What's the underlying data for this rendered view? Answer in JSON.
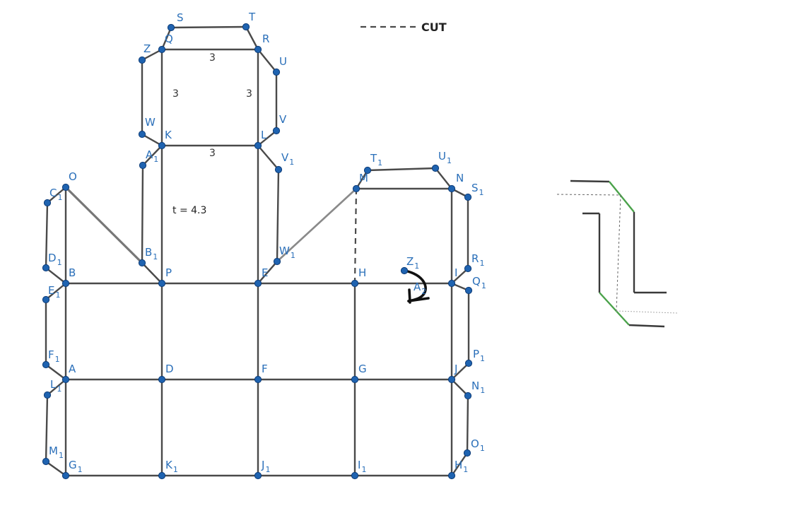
{
  "legend": {
    "cut_label": "CUT"
  },
  "parameter": {
    "text": "t = 4.3"
  },
  "dimensions": [
    {
      "key": "qr",
      "text": "3"
    },
    {
      "key": "qk",
      "text": "3"
    },
    {
      "key": "rl",
      "text": "3"
    },
    {
      "key": "kl",
      "text": "3"
    }
  ],
  "points": [
    {
      "key": "S",
      "base": "S",
      "sub": ""
    },
    {
      "key": "T",
      "base": "T",
      "sub": ""
    },
    {
      "key": "Q",
      "base": "Q",
      "sub": ""
    },
    {
      "key": "R",
      "base": "R",
      "sub": ""
    },
    {
      "key": "Z",
      "base": "Z",
      "sub": ""
    },
    {
      "key": "U",
      "base": "U",
      "sub": ""
    },
    {
      "key": "V",
      "base": "V",
      "sub": ""
    },
    {
      "key": "W",
      "base": "W",
      "sub": ""
    },
    {
      "key": "K",
      "base": "K",
      "sub": ""
    },
    {
      "key": "L",
      "base": "L",
      "sub": ""
    },
    {
      "key": "A1",
      "base": "A",
      "sub": "1"
    },
    {
      "key": "V1",
      "base": "V",
      "sub": "1"
    },
    {
      "key": "T1",
      "base": "T",
      "sub": "1"
    },
    {
      "key": "U1",
      "base": "U",
      "sub": "1"
    },
    {
      "key": "M",
      "base": "M",
      "sub": ""
    },
    {
      "key": "N",
      "base": "N",
      "sub": ""
    },
    {
      "key": "S1",
      "base": "S",
      "sub": "1"
    },
    {
      "key": "O",
      "base": "O",
      "sub": ""
    },
    {
      "key": "C1",
      "base": "C",
      "sub": "1"
    },
    {
      "key": "D1",
      "base": "D",
      "sub": "1"
    },
    {
      "key": "B1",
      "base": "B",
      "sub": "1"
    },
    {
      "key": "W1",
      "base": "W",
      "sub": "1"
    },
    {
      "key": "R1",
      "base": "R",
      "sub": "1"
    },
    {
      "key": "Z1",
      "base": "Z",
      "sub": "1"
    },
    {
      "key": "A2",
      "base": "A",
      "sub": "2"
    },
    {
      "key": "B",
      "base": "B",
      "sub": ""
    },
    {
      "key": "P",
      "base": "P",
      "sub": ""
    },
    {
      "key": "E",
      "base": "E",
      "sub": ""
    },
    {
      "key": "H",
      "base": "H",
      "sub": ""
    },
    {
      "key": "I",
      "base": "I",
      "sub": ""
    },
    {
      "key": "Q1",
      "base": "Q",
      "sub": "1"
    },
    {
      "key": "E1",
      "base": "E",
      "sub": "1"
    },
    {
      "key": "F1",
      "base": "F",
      "sub": "1"
    },
    {
      "key": "A",
      "base": "A",
      "sub": ""
    },
    {
      "key": "D",
      "base": "D",
      "sub": ""
    },
    {
      "key": "F",
      "base": "F",
      "sub": ""
    },
    {
      "key": "G",
      "base": "G",
      "sub": ""
    },
    {
      "key": "J",
      "base": "J",
      "sub": ""
    },
    {
      "key": "P1",
      "base": "P",
      "sub": "1"
    },
    {
      "key": "L1",
      "base": "L",
      "sub": "1"
    },
    {
      "key": "N1",
      "base": "N",
      "sub": "1"
    },
    {
      "key": "M1",
      "base": "M",
      "sub": "1"
    },
    {
      "key": "O1",
      "base": "O",
      "sub": "1"
    },
    {
      "key": "G1",
      "base": "G",
      "sub": "1"
    },
    {
      "key": "K1",
      "base": "K",
      "sub": "1"
    },
    {
      "key": "J1",
      "base": "J",
      "sub": "1"
    },
    {
      "key": "I1",
      "base": "I",
      "sub": "1"
    },
    {
      "key": "H1",
      "base": "H",
      "sub": "1"
    }
  ],
  "colors": {
    "point_fill": "#1f63b0",
    "label": "#2a6fb9",
    "edge": "#4a4a4a",
    "green_edge": "#4aa24a"
  }
}
